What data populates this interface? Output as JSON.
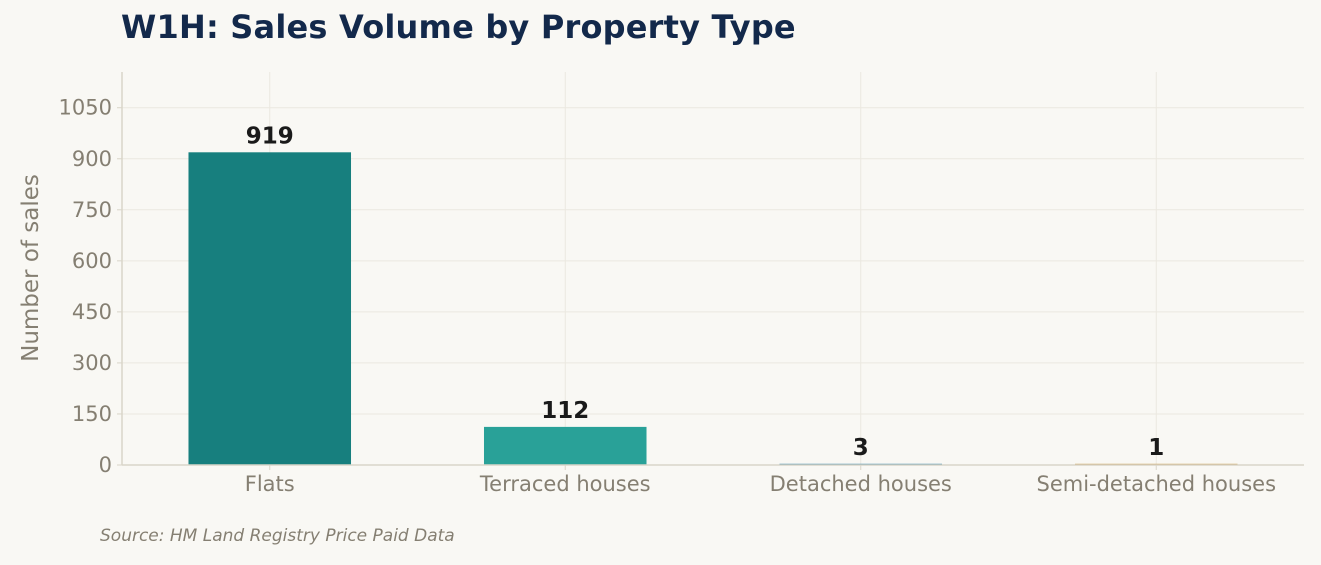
{
  "chart_data": {
    "type": "bar",
    "title": "W1H: Sales Volume by Property Type",
    "xlabel": "",
    "ylabel": "Number of sales",
    "categories": [
      "Flats",
      "Terraced houses",
      "Detached houses",
      "Semi-detached houses"
    ],
    "values": [
      919,
      112,
      3,
      1
    ],
    "bar_colors": [
      "#177f7e",
      "#29a198",
      "#2c7fa7",
      "#c89b4a"
    ],
    "ylim": [
      0,
      1155
    ],
    "yticks": [
      0,
      150,
      300,
      450,
      600,
      750,
      900,
      1050
    ],
    "grid": true,
    "source": "Source: HM Land Registry Price Paid Data"
  }
}
